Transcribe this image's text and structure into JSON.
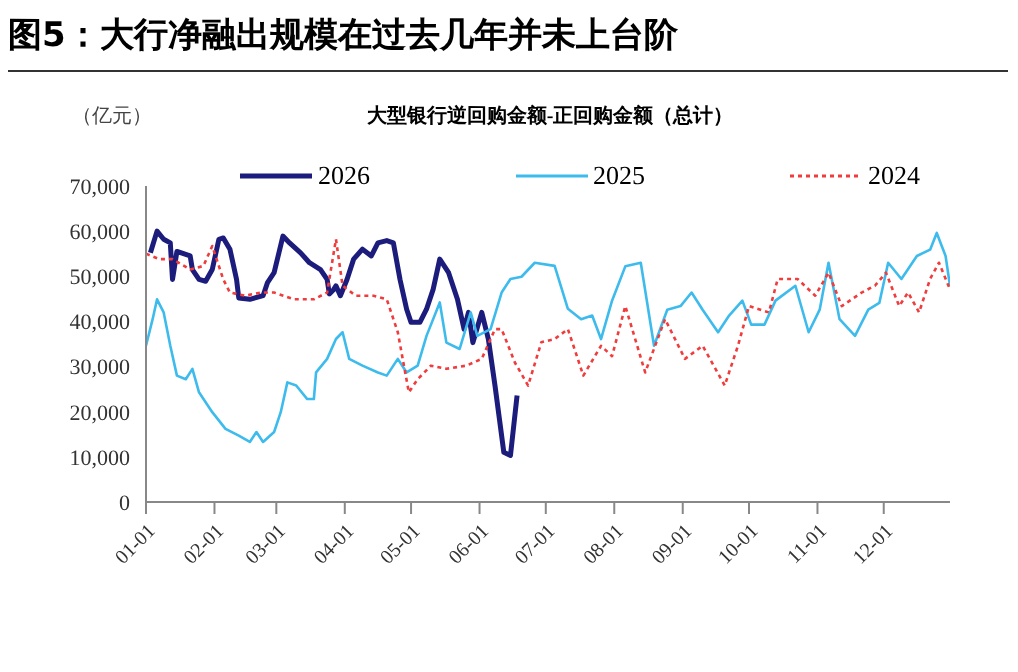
{
  "chart_data": {
    "type": "line",
    "title": "图5：大行净融出规模在过去几年并未上台阶",
    "subtitle": "大型银行逆回购金额-正回购金额（总计）",
    "ylabel": "（亿元）",
    "xlim": [
      "--01-01",
      "--12-31"
    ],
    "xticks": [
      {
        "value": "--01-01",
        "label": "01-01"
      },
      {
        "value": "--02-01",
        "label": "02-01"
      },
      {
        "value": "--03-01",
        "label": "03-01"
      },
      {
        "value": "--04-01",
        "label": "04-01"
      },
      {
        "value": "--05-01",
        "label": "05-01"
      },
      {
        "value": "--06-01",
        "label": "06-01"
      },
      {
        "value": "--07-01",
        "label": "07-01"
      },
      {
        "value": "--08-01",
        "label": "08-01"
      },
      {
        "value": "--09-01",
        "label": "09-01"
      },
      {
        "value": "--10-01",
        "label": "10-01"
      },
      {
        "value": "--11-01",
        "label": "11-01"
      },
      {
        "value": "--12-01",
        "label": "12-01"
      }
    ],
    "ylim": [
      0,
      70000
    ],
    "yticks": [
      {
        "value": 0,
        "label": "0"
      },
      {
        "value": 10000,
        "label": "10,000"
      },
      {
        "value": 20000,
        "label": "20,000"
      },
      {
        "value": 30000,
        "label": "30,000"
      },
      {
        "value": 40000,
        "label": "40,000"
      },
      {
        "value": 50000,
        "label": "50,000"
      },
      {
        "value": 60000,
        "label": "60,000"
      },
      {
        "value": 70000,
        "label": "70,000"
      }
    ],
    "legend": "top",
    "marker": "none",
    "series": [
      {
        "name": "2026",
        "color": "#1c1c7c",
        "line_style": "solid",
        "x": [
          "--01-03",
          "--01-06",
          "--01-09",
          "--01-12",
          "--01-13",
          "--01-15",
          "--01-18",
          "--01-21",
          "--01-22",
          "--01-25",
          "--01-28",
          "--01-31",
          "--02-03",
          "--02-05",
          "--02-08",
          "--02-11",
          "--02-12",
          "--02-17",
          "--02-23",
          "--02-25",
          "--02-28",
          "--03-04",
          "--03-07",
          "--03-12",
          "--03-16",
          "--03-21",
          "--03-24",
          "--03-25",
          "--03-27",
          "--03-28",
          "--03-30",
          "--04-02",
          "--04-05",
          "--04-09",
          "--04-13",
          "--04-16",
          "--04-20",
          "--04-23",
          "--04-26",
          "--04-29",
          "--05-01",
          "--05-02",
          "--05-05",
          "--05-08",
          "--05-11",
          "--05-14",
          "--05-18",
          "--05-22",
          "--05-25",
          "--05-27",
          "--05-29",
          "--06-02",
          "--06-05",
          "--06-08",
          "--06-10",
          "--06-12",
          "--06-15",
          "--06-18"
        ],
        "values": [
          55200,
          60000,
          58200,
          57400,
          49300,
          55500,
          55000,
          54500,
          51500,
          49300,
          48900,
          51500,
          58200,
          58500,
          56000,
          49300,
          45200,
          44900,
          45700,
          48600,
          50800,
          58900,
          57400,
          55200,
          53000,
          51500,
          49300,
          46100,
          47100,
          47900,
          45700,
          49300,
          53800,
          56000,
          54500,
          57400,
          57900,
          57400,
          49300,
          42700,
          39800,
          39800,
          39800,
          42700,
          47100,
          53800,
          50800,
          44900,
          38300,
          42000,
          35300,
          42000,
          36100,
          25800,
          18400,
          11000,
          10300,
          23600
        ]
      },
      {
        "name": "2025",
        "color": "#3dbbec",
        "line_style": "solid",
        "x": [
          "--01-01",
          "--01-04",
          "--01-06",
          "--01-09",
          "--01-12",
          "--01-15",
          "--01-19",
          "--01-22",
          "--01-25",
          "--01-31",
          "--02-06",
          "--02-12",
          "--02-17",
          "--02-20",
          "--02-23",
          "--02-28",
          "--03-03",
          "--03-06",
          "--03-10",
          "--03-15",
          "--03-18",
          "--03-19",
          "--03-24",
          "--03-28",
          "--03-31",
          "--04-03",
          "--04-09",
          "--04-16",
          "--04-20",
          "--04-25",
          "--04-29",
          "--05-04",
          "--05-08",
          "--05-14",
          "--05-17",
          "--05-23",
          "--05-28",
          "--05-31",
          "--06-06",
          "--06-11",
          "--06-15",
          "--06-20",
          "--06-26",
          "--07-05",
          "--07-11",
          "--07-17",
          "--07-22",
          "--07-26",
          "--07-31",
          "--08-06",
          "--08-13",
          "--08-19",
          "--08-25",
          "--08-31",
          "--09-05",
          "--09-10",
          "--09-17",
          "--09-22",
          "--09-28",
          "--10-02",
          "--10-08",
          "--10-13",
          "--10-22",
          "--10-28",
          "--11-02",
          "--11-06",
          "--11-11",
          "--11-18",
          "--11-24",
          "--11-29",
          "--12-03",
          "--12-09",
          "--12-16",
          "--12-22",
          "--12-25",
          "--12-29",
          "--12-31"
        ],
        "values": [
          34600,
          40500,
          44900,
          42000,
          34600,
          28000,
          27200,
          29500,
          24300,
          19900,
          16200,
          14700,
          13300,
          15500,
          13300,
          15500,
          19900,
          26500,
          25800,
          22800,
          22800,
          28700,
          31700,
          36100,
          37600,
          31700,
          30200,
          28700,
          28000,
          31700,
          28700,
          30200,
          36800,
          44200,
          35300,
          33900,
          42000,
          36800,
          38300,
          46400,
          49400,
          49900,
          53000,
          52300,
          42800,
          40500,
          41300,
          36100,
          44600,
          52200,
          53000,
          34600,
          42600,
          43400,
          46400,
          42600,
          37600,
          41300,
          44600,
          39300,
          39300,
          44600,
          47900,
          37600,
          42600,
          53000,
          40500,
          36800,
          42600,
          44100,
          53000,
          49400,
          54500,
          55900,
          59600,
          54500,
          47900
        ]
      },
      {
        "name": "2024",
        "color": "#f03c3c",
        "line_style": "dotted",
        "x": [
          "--01-01",
          "--01-07",
          "--01-13",
          "--01-21",
          "--01-27",
          "--01-31",
          "--02-05",
          "--02-08",
          "--02-15",
          "--02-22",
          "--02-28",
          "--03-09",
          "--03-18",
          "--03-24",
          "--03-28",
          "--03-31",
          "--04-06",
          "--04-14",
          "--04-20",
          "--04-25",
          "--04-30",
          "--05-04",
          "--05-10",
          "--05-17",
          "--05-26",
          "--06-02",
          "--06-08",
          "--06-11",
          "--06-17",
          "--06-23",
          "--06-29",
          "--07-05",
          "--07-11",
          "--07-18",
          "--07-26",
          "--07-31",
          "--08-06",
          "--08-15",
          "--08-24",
          "--09-02",
          "--09-10",
          "--09-20",
          "--09-26",
          "--10-01",
          "--10-10",
          "--10-14",
          "--10-23",
          "--10-31",
          "--11-06",
          "--11-12",
          "--11-21",
          "--11-27",
          "--12-02",
          "--12-08",
          "--12-12",
          "--12-17",
          "--12-22",
          "--12-26",
          "--12-31"
        ],
        "values": [
          55000,
          53800,
          53800,
          51500,
          52300,
          56700,
          49300,
          46400,
          45700,
          46400,
          46400,
          44900,
          44900,
          46400,
          58200,
          47900,
          45700,
          45700,
          44900,
          37600,
          24300,
          27200,
          30200,
          29500,
          30200,
          31700,
          38300,
          38300,
          30900,
          25800,
          35400,
          36100,
          38300,
          28000,
          34600,
          32300,
          43400,
          28700,
          40500,
          31700,
          34600,
          25800,
          34600,
          43400,
          42000,
          49400,
          49400,
          45700,
          50800,
          43400,
          46400,
          47900,
          50800,
          43400,
          46400,
          42000,
          49400,
          53000,
          47100
        ]
      }
    ]
  }
}
